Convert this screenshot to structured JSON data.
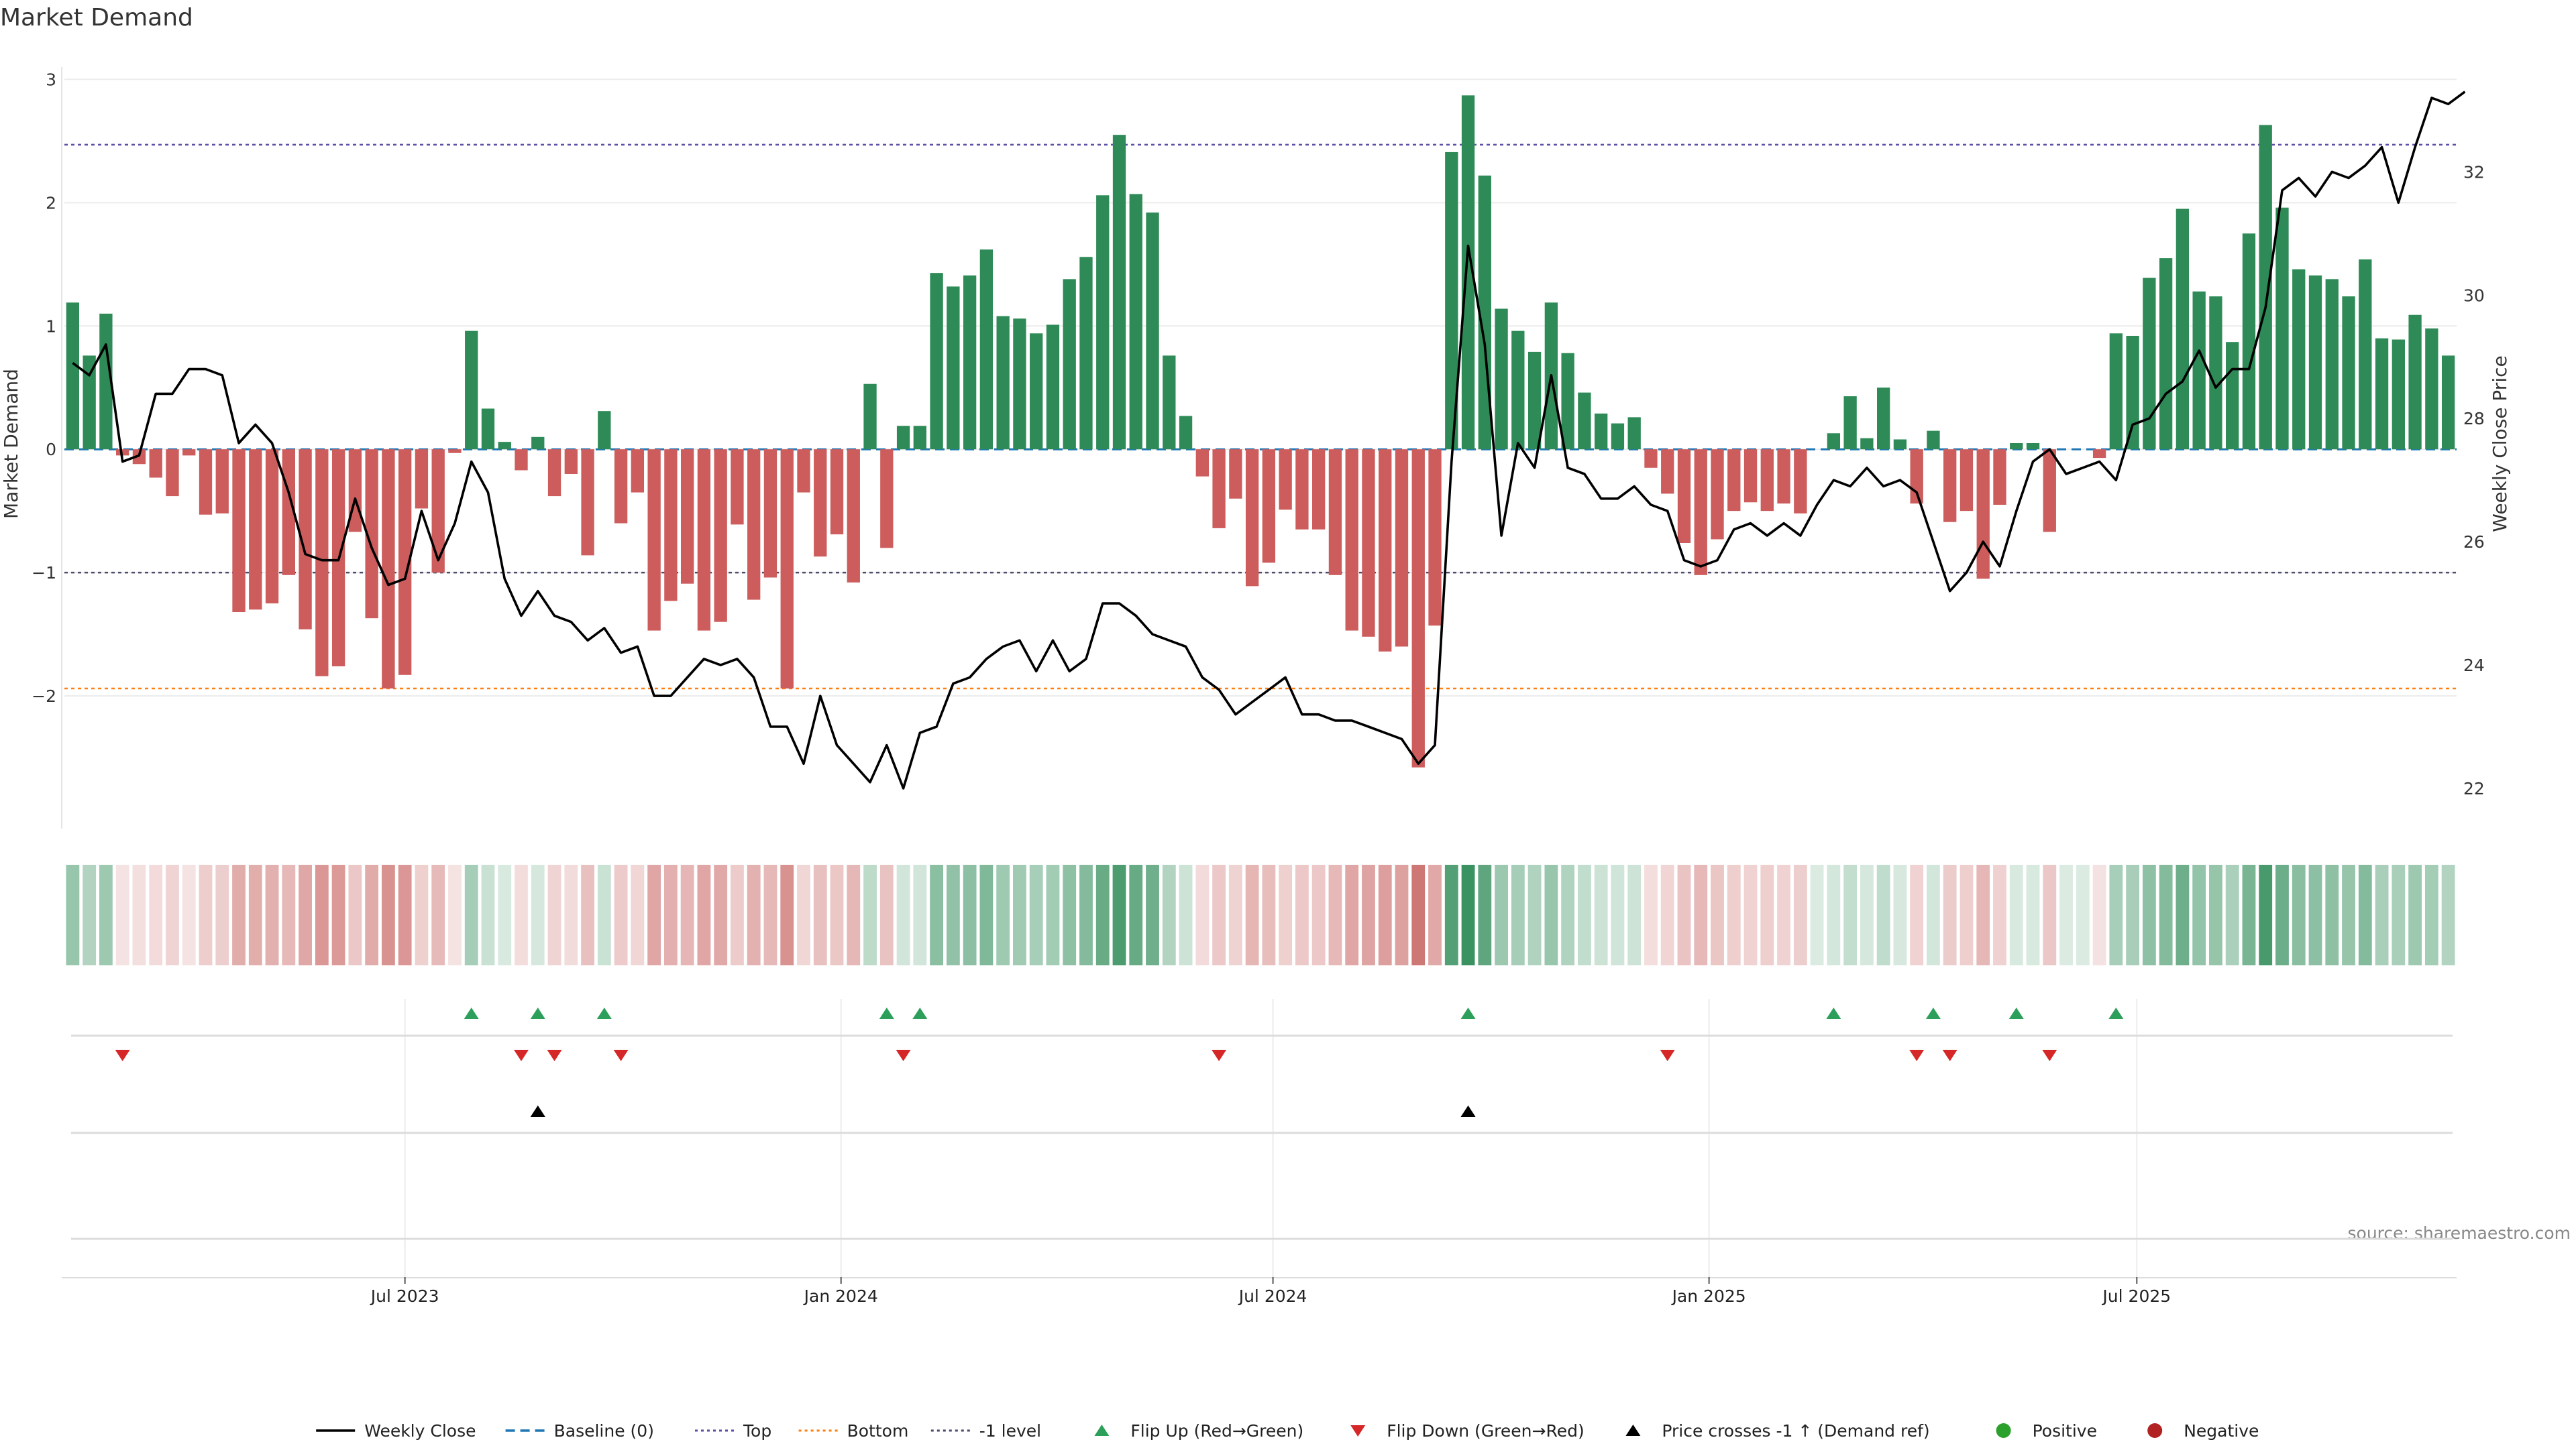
{
  "chart_data": {
    "type": "bar",
    "title": "Market Demand",
    "source": "source: sharemaestro.com",
    "left_axis": {
      "label": "Market Demand",
      "ylim": [
        -3.0,
        3.1
      ],
      "ticks": [
        3,
        2,
        1,
        0,
        -1,
        -2
      ],
      "tick_labels": [
        "3",
        "2",
        "1",
        "0",
        "−1",
        "−2"
      ]
    },
    "right_axis": {
      "label": "Weekly Close Price",
      "ylim": [
        21.5,
        33.7
      ],
      "ticks": [
        32,
        30,
        28,
        26,
        24,
        22
      ],
      "tick_labels": [
        "32",
        "30",
        "28",
        "26",
        "24",
        "22"
      ]
    },
    "x_ticks": [
      {
        "index": 20.5,
        "label": "Jul 2023"
      },
      {
        "index": 46.75,
        "label": "Jan 2024"
      },
      {
        "index": 72.75,
        "label": "Jul 2024"
      },
      {
        "index": 99,
        "label": "Jan 2025"
      },
      {
        "index": 124.75,
        "label": "Jul 2025"
      }
    ],
    "reference_lines": [
      {
        "name": "Baseline (0)",
        "value": 0,
        "color": "#1f77b4",
        "style": "dashed"
      },
      {
        "name": "Top",
        "value": 2.47,
        "color": "#5b4fa8",
        "style": "dotted"
      },
      {
        "name": "Bottom",
        "value": -1.94,
        "color": "#ff7f0e",
        "style": "dotted"
      },
      {
        "name": "-1 level",
        "value": -1.0,
        "color": "#4a4a6a",
        "style": "dotted"
      }
    ],
    "series": [
      {
        "name": "Market Demand",
        "values": [
          1.19,
          0.76,
          1.1,
          -0.05,
          -0.12,
          -0.23,
          -0.38,
          -0.05,
          -0.53,
          -0.52,
          -1.32,
          -1.3,
          -1.25,
          -1.02,
          -1.46,
          -1.84,
          -1.76,
          -0.67,
          -1.37,
          -1.94,
          -1.83,
          -0.48,
          -1.0,
          -0.03,
          0.96,
          0.33,
          0.06,
          -0.17,
          0.1,
          -0.38,
          -0.2,
          -0.86,
          0.31,
          -0.6,
          -0.35,
          -1.47,
          -1.23,
          -1.09,
          -1.47,
          -1.4,
          -0.61,
          -1.22,
          -1.04,
          -1.94,
          -0.35,
          -0.87,
          -0.69,
          -1.08,
          0.53,
          -0.8,
          0.19,
          0.19,
          1.43,
          1.32,
          1.41,
          1.62,
          1.08,
          1.06,
          0.94,
          1.01,
          1.38,
          1.56,
          2.06,
          2.55,
          2.07,
          1.92,
          0.76,
          0.27,
          -0.22,
          -0.64,
          -0.4,
          -1.11,
          -0.92,
          -0.49,
          -0.65,
          -0.65,
          -1.02,
          -1.47,
          -1.52,
          -1.64,
          -1.6,
          -2.58,
          -1.43,
          2.41,
          2.87,
          2.22,
          1.14,
          0.96,
          0.79,
          1.19,
          0.78,
          0.46,
          0.29,
          0.21,
          0.26,
          -0.15,
          -0.36,
          -0.76,
          -1.02,
          -0.73,
          -0.5,
          -0.43,
          -0.5,
          -0.44,
          -0.52,
          0.0,
          0.13,
          0.43,
          0.09,
          0.5,
          0.08,
          -0.44,
          0.15,
          -0.59,
          -0.5,
          -1.05,
          -0.45,
          0.05,
          0.05,
          -0.67,
          0.0,
          0.0,
          -0.07,
          0.94,
          0.92,
          1.39,
          1.55,
          1.95,
          1.28,
          1.24,
          0.87,
          1.75,
          2.63,
          1.96,
          1.46,
          1.41,
          1.38,
          1.24,
          1.54,
          0.9,
          0.89,
          1.09,
          0.98,
          0.76
        ]
      },
      {
        "name": "Weekly Close",
        "values": [
          28.9,
          28.7,
          29.2,
          27.3,
          27.4,
          28.4,
          28.4,
          28.8,
          28.8,
          28.7,
          27.6,
          27.9,
          27.6,
          26.8,
          25.8,
          25.7,
          25.7,
          26.7,
          25.9,
          25.3,
          25.4,
          26.5,
          25.7,
          26.3,
          27.3,
          26.8,
          25.4,
          24.8,
          25.2,
          24.8,
          24.7,
          24.4,
          24.6,
          24.2,
          24.3,
          23.5,
          23.5,
          23.8,
          24.1,
          24.0,
          24.1,
          23.8,
          23.0,
          23.0,
          22.4,
          23.5,
          22.7,
          22.4,
          22.1,
          22.7,
          22.0,
          22.9,
          23.0,
          23.7,
          23.8,
          24.1,
          24.3,
          24.4,
          23.9,
          24.4,
          23.9,
          24.1,
          25.0,
          25.0,
          24.8,
          24.5,
          24.4,
          24.3,
          23.8,
          23.6,
          23.2,
          23.4,
          23.6,
          23.8,
          23.2,
          23.2,
          23.1,
          23.1,
          23.0,
          22.9,
          22.8,
          22.4,
          22.7,
          27.3,
          30.8,
          29.2,
          26.1,
          27.6,
          27.2,
          28.7,
          27.2,
          27.1,
          26.7,
          26.7,
          26.9,
          26.6,
          26.5,
          25.7,
          25.6,
          25.7,
          26.2,
          26.3,
          26.1,
          26.3,
          26.1,
          26.6,
          27.0,
          26.9,
          27.2,
          26.9,
          27.0,
          26.8,
          26.0,
          25.2,
          25.5,
          26.0,
          25.6,
          26.5,
          27.3,
          27.5,
          27.1,
          27.2,
          27.3,
          27.0,
          27.9,
          28.0,
          28.4,
          28.6,
          29.1,
          28.5,
          28.8,
          28.8,
          29.8,
          31.7,
          31.9,
          31.6,
          32.0,
          31.9,
          32.1,
          32.4,
          31.5,
          32.4,
          33.2,
          33.1,
          33.3
        ]
      }
    ],
    "events": {
      "flip_up": [
        24,
        28,
        32,
        49,
        51,
        84,
        106,
        112,
        117,
        123
      ],
      "flip_down": [
        3,
        27,
        29,
        33,
        50,
        69,
        96,
        111,
        113,
        119
      ],
      "price_cross": [
        28,
        84
      ]
    },
    "legend": {
      "placement": "bottom-center",
      "items": [
        {
          "label": "Weekly Close",
          "kind": "line",
          "color": "#000000"
        },
        {
          "label": "Baseline (0)",
          "kind": "dashed",
          "color": "#1f77b4"
        },
        {
          "label": "Top",
          "kind": "dotted",
          "color": "#5b4fa8"
        },
        {
          "label": "Bottom",
          "kind": "dotted",
          "color": "#ff7f0e"
        },
        {
          "label": "-1 level",
          "kind": "dotted",
          "color": "#4a4a6a"
        },
        {
          "label": "Flip Up (Red→Green)",
          "kind": "triangle-up",
          "color": "#2ca05a"
        },
        {
          "label": "Flip Down (Green→Red)",
          "kind": "triangle-down",
          "color": "#d62728"
        },
        {
          "label": "Price crosses -1 ↑ (Demand ref)",
          "kind": "triangle-up",
          "color": "#000000"
        },
        {
          "label": "Positive",
          "kind": "circle",
          "color": "#2ca02c"
        },
        {
          "label": "Negative",
          "kind": "circle",
          "color": "#b22222"
        }
      ]
    },
    "colors": {
      "positive_bar": "#2e8b57",
      "negative_bar": "#cd5c5c",
      "price_line": "#000000",
      "flip_up": "#2ca05a",
      "flip_down": "#d62728",
      "heat_positive": "#2e8b57",
      "heat_negative": "#c0504d"
    },
    "grid": true
  }
}
